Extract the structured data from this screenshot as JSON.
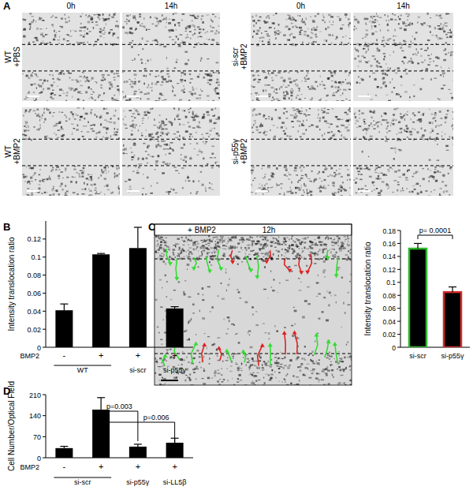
{
  "figure": {
    "panel_letters": [
      "A",
      "B",
      "C",
      "D"
    ],
    "panel_a": {
      "grids": [
        {
          "headers": [
            "0h",
            "14h"
          ],
          "rows": [
            [
              "WT",
              "+PBS"
            ],
            [
              "WT",
              "+BMP2"
            ]
          ]
        },
        {
          "headers": [
            "0h",
            "14h"
          ],
          "rows": [
            [
              "si-scr",
              "+BMP2"
            ],
            [
              "si-p55γ",
              "+BMP2"
            ]
          ]
        }
      ]
    },
    "panel_c_image": {
      "header": [
        "+ BMP2",
        "12h"
      ]
    }
  },
  "chart_data": [
    {
      "type": "bar",
      "y_label": "Intensity translocation ratio",
      "row_label": "BMP2",
      "categories": [
        "-",
        "+",
        "+",
        "+"
      ],
      "groups": [
        {
          "label": "WT",
          "from": 0,
          "to": 1
        },
        {
          "label": "si-scr",
          "from": 2,
          "to": 2
        },
        {
          "label": "si-p55γ",
          "from": 3,
          "to": 3
        }
      ],
      "values": [
        0.041,
        0.103,
        0.11,
        0.043
      ],
      "errors": [
        0.007,
        0.001,
        0.023,
        0.002
      ],
      "color": "#000000",
      "ylim": [
        0,
        0.14
      ],
      "yticks": [
        0,
        0.02,
        0.04,
        0.06,
        0.08,
        0.1,
        0.12
      ]
    },
    {
      "type": "bar",
      "y_label": "Intensity translocation ratio",
      "categories": [
        "si-scr",
        "si-p55γ"
      ],
      "values": [
        0.152,
        0.085
      ],
      "errors": [
        0.008,
        0.008
      ],
      "colors": [
        "#2db92d",
        "#d42a2a"
      ],
      "ylim": [
        0,
        0.18
      ],
      "yticks": [
        0,
        0.02,
        0.04,
        0.06,
        0.08,
        0.1,
        0.12,
        0.14,
        0.16,
        0.18
      ],
      "annotations": [
        {
          "text": "p= 0.0001",
          "from": 0,
          "to": 1
        }
      ]
    },
    {
      "type": "bar",
      "y_label": "Cell Number/Optical Field",
      "row_label": "BMP2",
      "categories": [
        "-",
        "+",
        "+",
        "+"
      ],
      "groups": [
        {
          "label": "si-scr",
          "from": 0,
          "to": 1
        },
        {
          "label": "si-p55γ",
          "from": 2,
          "to": 2
        },
        {
          "label": "si-LL5β",
          "from": 3,
          "to": 3
        }
      ],
      "values": [
        32,
        160,
        37,
        50
      ],
      "errors": [
        6,
        40,
        8,
        15
      ],
      "color": "#000000",
      "ylim": [
        0,
        210
      ],
      "yticks": [
        0,
        70,
        140,
        210
      ],
      "annotations": [
        {
          "text": "p=0.003",
          "from": 1,
          "to": 2
        },
        {
          "text": "p=0.006",
          "from": 1,
          "to": 3
        }
      ]
    }
  ]
}
